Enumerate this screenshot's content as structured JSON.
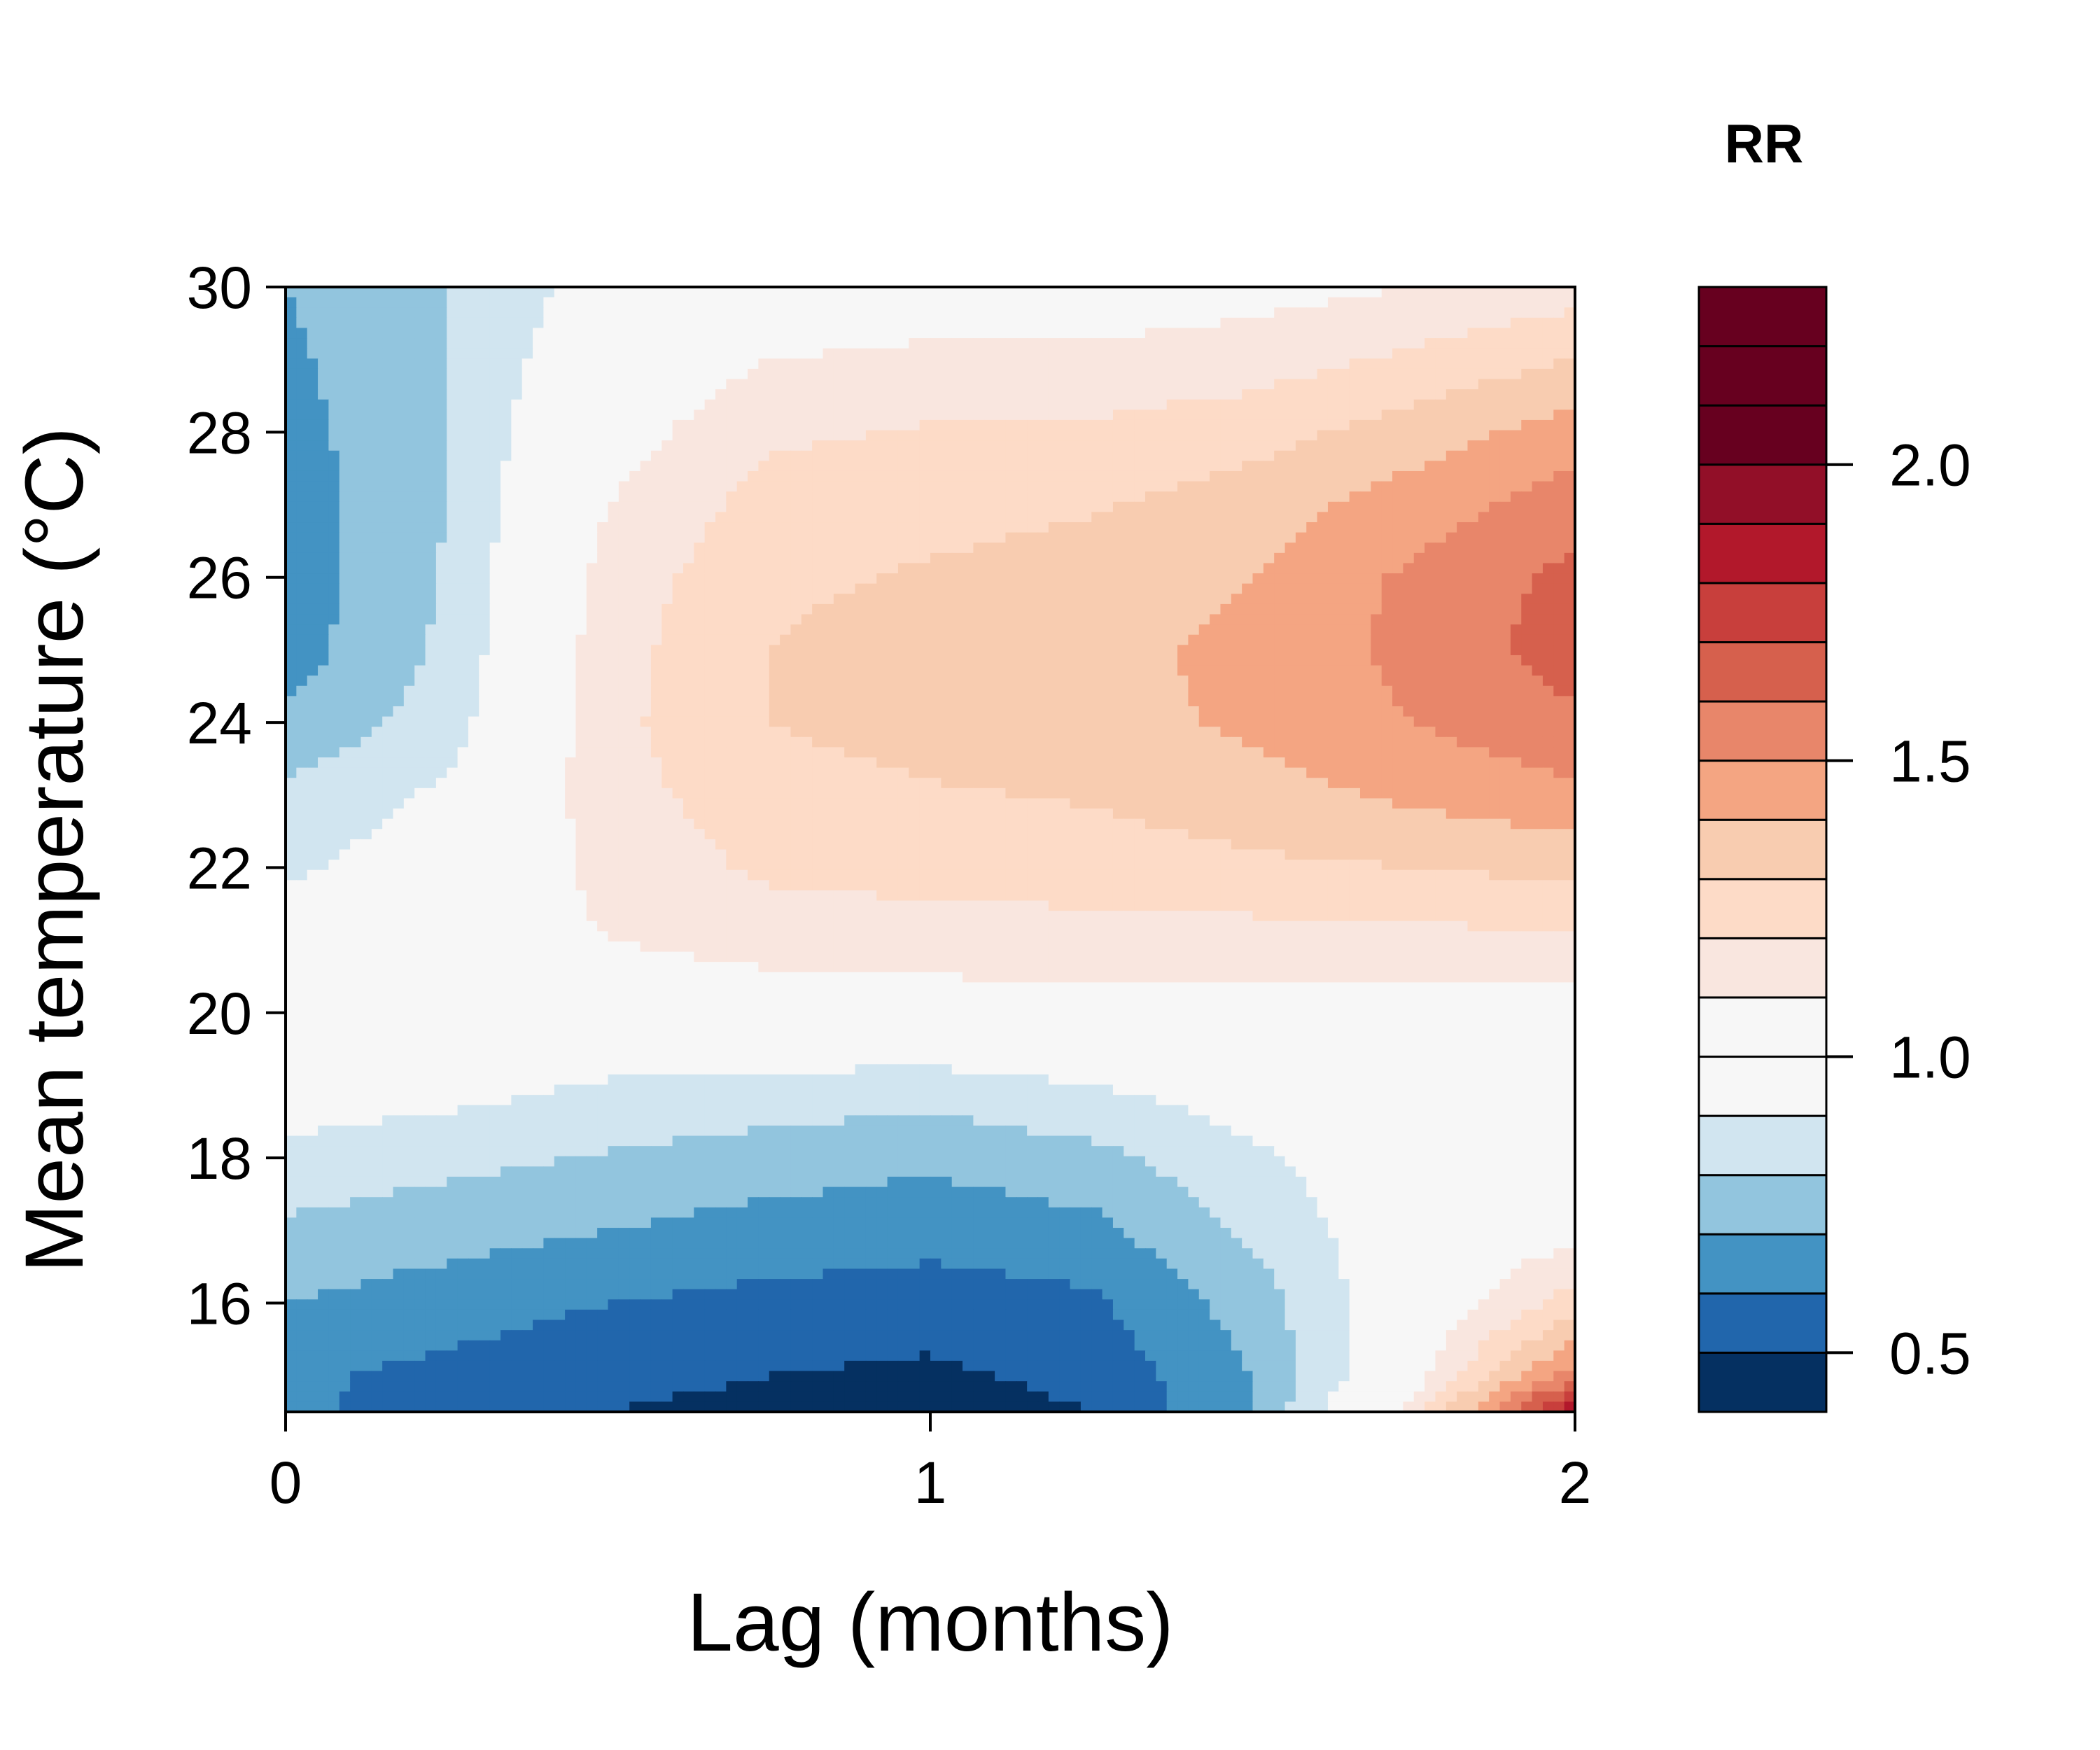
{
  "chart_data": {
    "type": "heatmap",
    "subtype": "filled-contour",
    "xlabel": "Lag (months)",
    "ylabel": "Mean temperature (°C)",
    "legend_title": "RR",
    "xlim": [
      0,
      2
    ],
    "ylim": [
      14.5,
      30
    ],
    "x_ticks": [
      0,
      1,
      2
    ],
    "y_ticks": [
      16,
      18,
      20,
      22,
      24,
      26,
      28,
      30
    ],
    "color_levels": [
      0.4,
      0.5,
      0.6,
      0.7,
      0.8,
      0.9,
      1.0,
      1.1,
      1.2,
      1.3,
      1.4,
      1.5,
      1.6,
      1.7,
      1.8,
      1.9,
      2.0,
      2.1,
      2.2,
      2.3
    ],
    "legend_ticks": [
      0.5,
      1.0,
      1.5,
      2.0
    ],
    "legend_tick_labels": [
      "0.5",
      "1.0",
      "1.5",
      "2.0"
    ],
    "level_colors": [
      "#053061",
      "#2166ac",
      "#4393c3",
      "#92c5de",
      "#d1e5f0",
      "#f7f7f7",
      "#f7f7f7",
      "#f9e6df",
      "#fddbc7",
      "#f8ccb0",
      "#f4a582",
      "#e8866a",
      "#d6604d",
      "#c83f3c",
      "#b2182b",
      "#920f28",
      "#67001f",
      "#67001f",
      "#67001f"
    ],
    "lag": [
      0,
      0.25,
      0.5,
      0.75,
      1.0,
      1.25,
      1.5,
      1.75,
      2.0
    ],
    "temperature": [
      14.5,
      15,
      16,
      17,
      18,
      19,
      20,
      21,
      22,
      23,
      24,
      25,
      26,
      27,
      28,
      29,
      30
    ],
    "rr": [
      [
        0.62,
        0.56,
        0.5,
        0.47,
        0.45,
        0.5,
        0.7,
        1.15,
        1.9
      ],
      [
        0.62,
        0.57,
        0.53,
        0.5,
        0.48,
        0.53,
        0.7,
        1.05,
        1.55
      ],
      [
        0.7,
        0.65,
        0.6,
        0.57,
        0.55,
        0.58,
        0.75,
        1.0,
        1.25
      ],
      [
        0.78,
        0.74,
        0.7,
        0.66,
        0.64,
        0.67,
        0.82,
        0.99,
        1.06
      ],
      [
        0.87,
        0.83,
        0.79,
        0.75,
        0.72,
        0.77,
        0.88,
        0.98,
        1.02
      ],
      [
        0.97,
        0.94,
        0.89,
        0.87,
        0.85,
        0.9,
        0.96,
        1.0,
        1.0
      ],
      [
        0.98,
        1.0,
        1.02,
        1.04,
        1.05,
        1.05,
        1.05,
        1.05,
        1.05
      ],
      [
        0.96,
        1.04,
        1.1,
        1.14,
        1.15,
        1.16,
        1.16,
        1.17,
        1.18
      ],
      [
        0.88,
        0.97,
        1.13,
        1.22,
        1.24,
        1.25,
        1.28,
        1.3,
        1.33
      ],
      [
        0.82,
        0.92,
        1.16,
        1.26,
        1.29,
        1.31,
        1.36,
        1.42,
        1.48
      ],
      [
        0.72,
        0.85,
        1.17,
        1.3,
        1.34,
        1.36,
        1.42,
        1.5,
        1.58
      ],
      [
        0.65,
        0.82,
        1.16,
        1.3,
        1.35,
        1.37,
        1.43,
        1.53,
        1.65
      ],
      [
        0.65,
        0.81,
        1.14,
        1.28,
        1.31,
        1.34,
        1.4,
        1.52,
        1.63
      ],
      [
        0.65,
        0.8,
        1.1,
        1.24,
        1.27,
        1.29,
        1.35,
        1.45,
        1.55
      ],
      [
        0.66,
        0.8,
        1.05,
        1.18,
        1.21,
        1.22,
        1.26,
        1.35,
        1.45
      ],
      [
        0.68,
        0.8,
        1.0,
        1.1,
        1.12,
        1.12,
        1.15,
        1.22,
        1.3
      ],
      [
        0.7,
        0.8,
        0.95,
        1.02,
        1.04,
        1.04,
        1.06,
        1.1,
        1.15
      ]
    ]
  }
}
